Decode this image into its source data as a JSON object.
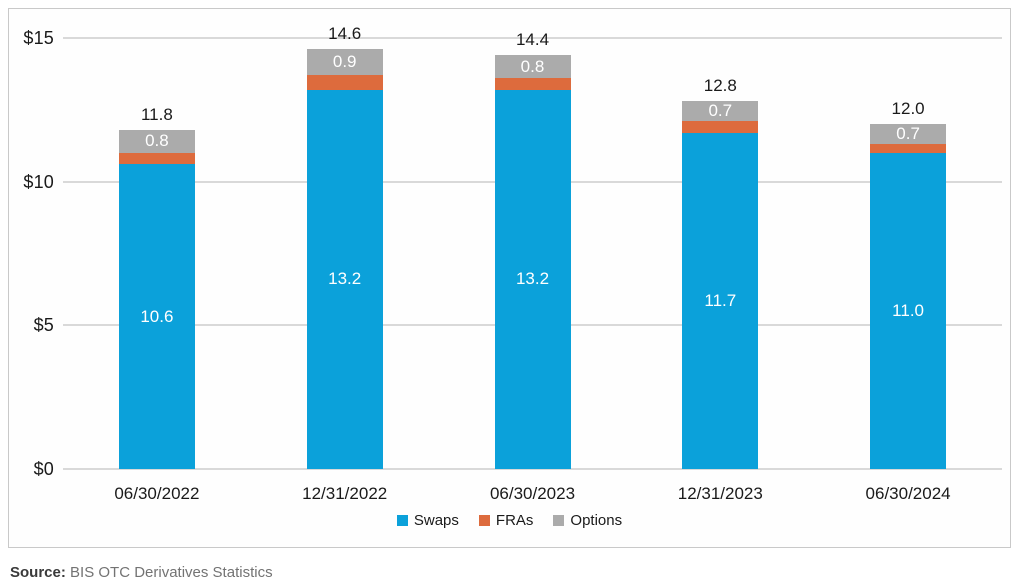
{
  "chart_data": {
    "type": "bar",
    "stacked": true,
    "title": "",
    "xlabel": "",
    "ylabel": "",
    "ylim": [
      0,
      15
    ],
    "grid": true,
    "legend_position": "bottom",
    "categories": [
      "06/30/2022",
      "12/31/2022",
      "06/30/2023",
      "12/31/2023",
      "06/30/2024"
    ],
    "series": [
      {
        "name": "Swaps",
        "color": "#0ba1da",
        "values": [
          10.6,
          13.2,
          13.2,
          11.7,
          11.0
        ],
        "labeled": true
      },
      {
        "name": "FRAs",
        "color": "#dd6b3d",
        "values": [
          0.4,
          0.5,
          0.4,
          0.4,
          0.3
        ],
        "labeled": false
      },
      {
        "name": "Options",
        "color": "#ababab",
        "values": [
          0.8,
          0.9,
          0.8,
          0.7,
          0.7
        ],
        "labeled": true
      }
    ],
    "totals": [
      "11.8",
      "14.6",
      "14.4",
      "12.8",
      "12.0"
    ],
    "yticks": [
      {
        "label": "$15",
        "value": 15
      },
      {
        "label": "$10",
        "value": 10
      },
      {
        "label": "$5",
        "value": 5
      },
      {
        "label": "$0",
        "value": 0
      }
    ],
    "legend": [
      "Swaps",
      "FRAs",
      "Options"
    ],
    "colors": {
      "swaps": "#0ba1da",
      "fras": "#dd6b3d",
      "options": "#ababab",
      "gridline": "#d9d9d9",
      "text": "#1a1a1a",
      "segment_label_text": "#ffffff"
    }
  },
  "source": {
    "label": "Source:",
    "text": " BIS OTC Derivatives Statistics"
  }
}
